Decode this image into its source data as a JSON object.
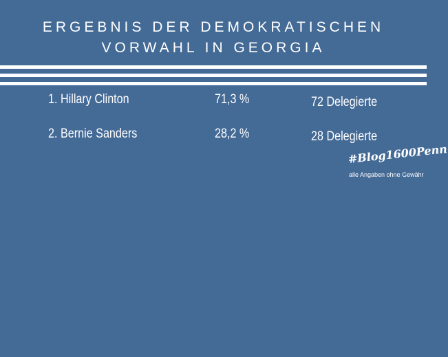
{
  "header": {
    "title_lines": [
      "ERGEBNIS DER DEMOKRATISCHEN",
      "VORWAHL IN GEORGIA"
    ]
  },
  "table": {
    "rows": [
      [
        "1.",
        "Hillary Clinton",
        "71,3 %",
        "72 Delegierte"
      ],
      [
        "2.",
        "Bernie Sanders",
        "28,2 %",
        "28 Delegierte"
      ]
    ]
  },
  "footer": {
    "hashtag": "#Blog1600Penn",
    "note": "alle Angaben ohne Gewähr"
  }
}
